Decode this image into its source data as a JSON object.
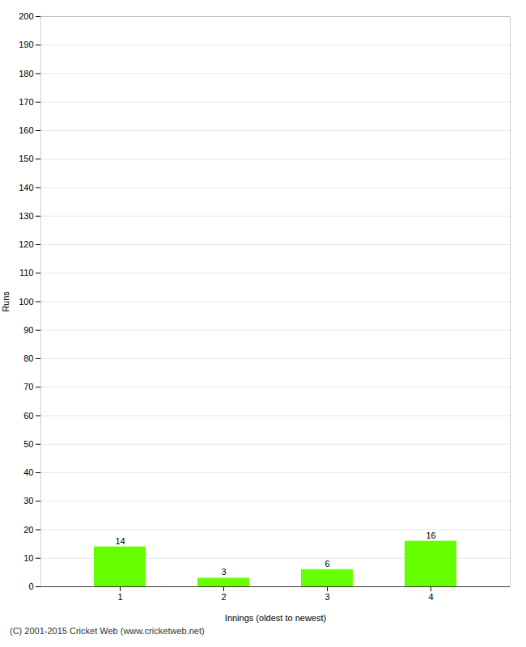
{
  "chart_data": {
    "type": "bar",
    "categories": [
      "1",
      "2",
      "3",
      "4"
    ],
    "values": [
      14,
      3,
      6,
      16
    ],
    "color": "#66ff00",
    "xlabel": "Innings (oldest to newest)",
    "ylabel": "Runs",
    "ylim": [
      0,
      200
    ],
    "yticks": [
      0,
      10,
      20,
      30,
      40,
      50,
      60,
      70,
      80,
      90,
      100,
      110,
      120,
      130,
      140,
      150,
      160,
      170,
      180,
      190,
      200
    ],
    "grid": true,
    "data_labels": true,
    "caption": "(C) 2001-2015 Cricket Web (www.cricketweb.net)"
  }
}
